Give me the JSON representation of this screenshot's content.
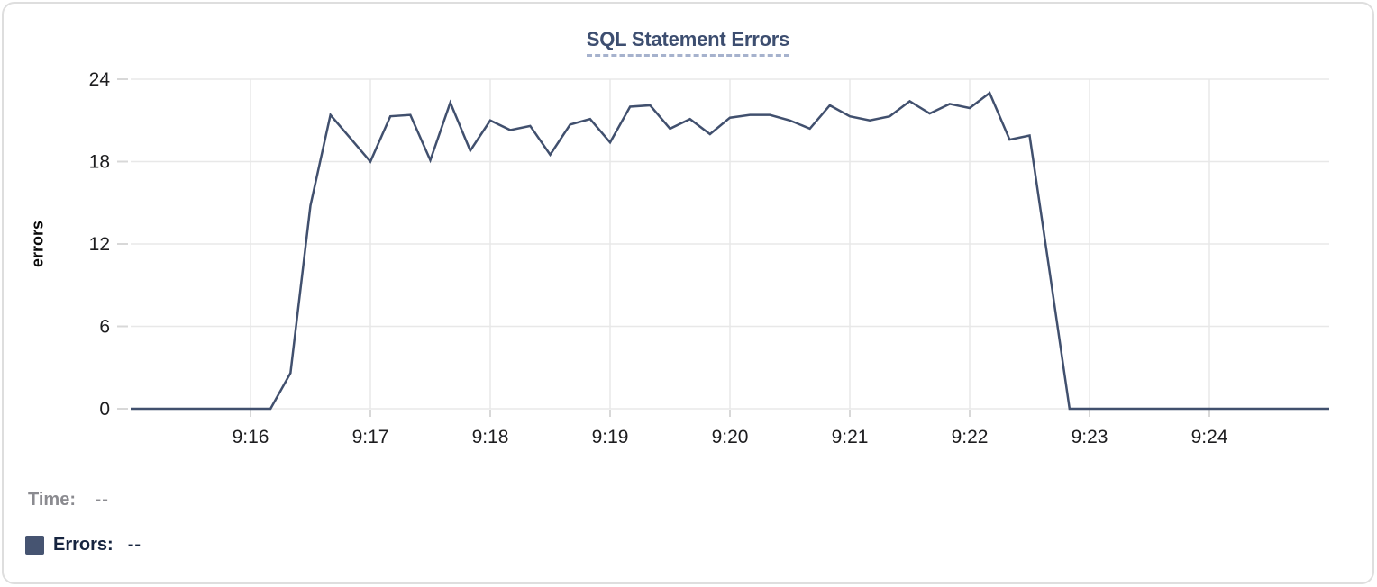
{
  "chart_data": {
    "type": "line",
    "title": "SQL Statement Errors",
    "ylabel": "errors",
    "xlabel": "",
    "series_name": "Errors",
    "grid": true,
    "legend_position": "bottom-left",
    "ylim": [
      0,
      24
    ],
    "y_ticks": [
      0,
      6,
      12,
      18,
      24
    ],
    "xlim": [
      "9:15:00",
      "9:25:00"
    ],
    "x_ticks": [
      {
        "time": "9:16:00",
        "label": "9:16"
      },
      {
        "time": "9:17:00",
        "label": "9:17"
      },
      {
        "time": "9:18:00",
        "label": "9:18"
      },
      {
        "time": "9:19:00",
        "label": "9:19"
      },
      {
        "time": "9:20:00",
        "label": "9:20"
      },
      {
        "time": "9:21:00",
        "label": "9:21"
      },
      {
        "time": "9:22:00",
        "label": "9:22"
      },
      {
        "time": "9:23:00",
        "label": "9:23"
      },
      {
        "time": "9:24:00",
        "label": "9:24"
      }
    ],
    "times": [
      "9:15:00",
      "9:15:10",
      "9:15:20",
      "9:15:30",
      "9:15:40",
      "9:15:50",
      "9:16:00",
      "9:16:10",
      "9:16:20",
      "9:16:30",
      "9:16:40",
      "9:16:50",
      "9:17:00",
      "9:17:10",
      "9:17:20",
      "9:17:30",
      "9:17:40",
      "9:17:50",
      "9:18:00",
      "9:18:10",
      "9:18:20",
      "9:18:30",
      "9:18:40",
      "9:18:50",
      "9:19:00",
      "9:19:10",
      "9:19:20",
      "9:19:30",
      "9:19:40",
      "9:19:50",
      "9:20:00",
      "9:20:10",
      "9:20:20",
      "9:20:30",
      "9:20:40",
      "9:20:50",
      "9:21:00",
      "9:21:10",
      "9:21:20",
      "9:21:30",
      "9:21:40",
      "9:21:50",
      "9:22:00",
      "9:22:10",
      "9:22:20",
      "9:22:30",
      "9:22:40",
      "9:22:50",
      "9:23:00",
      "9:23:10",
      "9:23:20",
      "9:23:30",
      "9:23:40",
      "9:23:50",
      "9:24:00",
      "9:24:10",
      "9:24:20",
      "9:24:30",
      "9:24:40",
      "9:24:50",
      "9:25:00"
    ],
    "values": [
      0,
      0,
      0,
      0,
      0,
      0,
      0,
      0,
      2.6,
      14.8,
      21.4,
      19.7,
      18,
      21.3,
      21.4,
      18.1,
      22.3,
      18.8,
      21,
      20.3,
      20.6,
      18.5,
      20.7,
      21.1,
      19.4,
      22,
      22.1,
      20.4,
      21.1,
      20,
      21.2,
      21.4,
      21.4,
      21,
      20.4,
      22.1,
      21.3,
      21,
      21.3,
      22.4,
      21.5,
      22.2,
      21.9,
      23,
      19.6,
      19.9,
      10,
      0,
      0,
      0,
      0,
      0,
      0,
      0,
      0,
      0,
      0,
      0,
      0,
      0,
      0
    ]
  },
  "footer": {
    "time_label": "Time:",
    "time_value": "--",
    "errors_label": "Errors:",
    "errors_value": "--"
  },
  "colors": {
    "line": "#41506e",
    "legend_swatch": "#465471",
    "title": "#3d4e70",
    "title_underline": "#a6b2cd",
    "grid": "#e8e8e8",
    "tick": "#d8d8d8",
    "axis_text": "#1d1d1f",
    "time_muted": "#8b8b90",
    "errors_text": "#16243f",
    "card_border": "#dedede"
  }
}
